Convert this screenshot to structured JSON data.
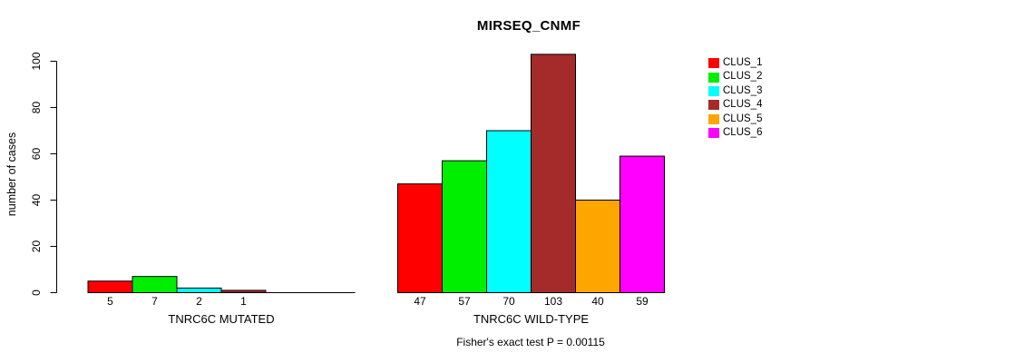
{
  "chart_data": {
    "type": "bar",
    "title": "MIRSEQ_CNMF",
    "ylabel": "number of cases",
    "ylim": [
      0,
      110
    ],
    "yticks": [
      0,
      20,
      40,
      60,
      80,
      100
    ],
    "grid": false,
    "legend_position": "right",
    "series": [
      {
        "name": "CLUS_1",
        "color": "#FF0000"
      },
      {
        "name": "CLUS_2",
        "color": "#00EE00"
      },
      {
        "name": "CLUS_3",
        "color": "#00FFFF"
      },
      {
        "name": "CLUS_4",
        "color": "#A52A2A"
      },
      {
        "name": "CLUS_5",
        "color": "#FFA500"
      },
      {
        "name": "CLUS_6",
        "color": "#FF00FF"
      }
    ],
    "groups": [
      {
        "label": "TNRC6C MUTATED",
        "values": [
          5,
          7,
          2,
          1,
          0,
          0
        ]
      },
      {
        "label": "TNRC6C WILD-TYPE",
        "values": [
          47,
          57,
          70,
          103,
          40,
          59
        ]
      }
    ],
    "annotation": "Fisher's exact test P = 0.00115"
  }
}
